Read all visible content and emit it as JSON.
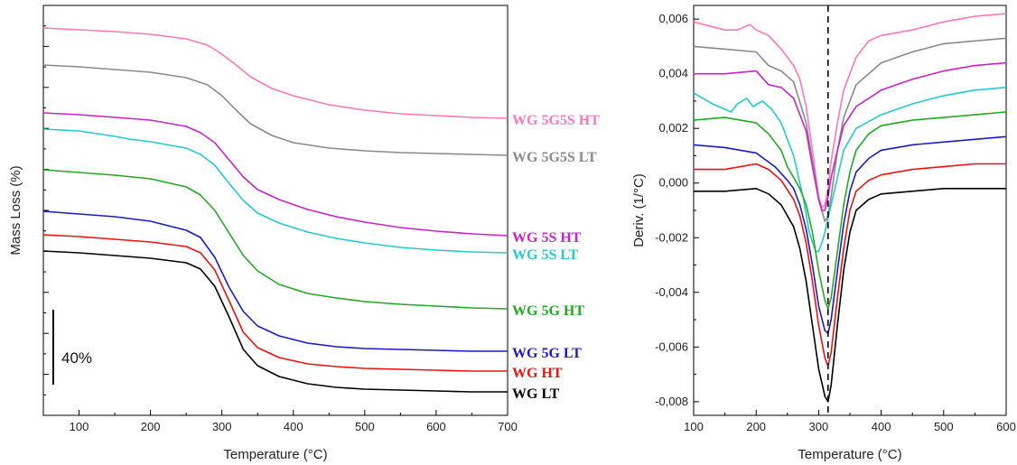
{
  "chart_data": [
    {
      "type": "line",
      "xlabel": "Temperature (°C)",
      "ylabel": "Mass Loss (%)",
      "xlim": [
        50,
        700
      ],
      "x_ticks": [
        100,
        200,
        300,
        400,
        500,
        600,
        700
      ],
      "y_tick_labels": "none",
      "y_tick_count": 20,
      "scale_bar": "40%",
      "series": [
        {
          "name": "WG 5G5S HT",
          "color": "#ff77bb",
          "x": [
            50,
            100,
            150,
            200,
            250,
            280,
            300,
            320,
            340,
            370,
            400,
            450,
            500,
            550,
            600,
            650,
            700
          ],
          "y": [
            31,
            33,
            35,
            38,
            43,
            50,
            60,
            72,
            85,
            98,
            106,
            116,
            122,
            126,
            128,
            130,
            131
          ]
        },
        {
          "name": "WG 5G5S LT",
          "color": "#8a8a8a",
          "x": [
            50,
            100,
            150,
            200,
            250,
            280,
            300,
            320,
            340,
            370,
            400,
            450,
            500,
            550,
            600,
            650,
            700
          ],
          "y": [
            72,
            74,
            77,
            80,
            86,
            94,
            106,
            122,
            137,
            150,
            158,
            164,
            167,
            169,
            170,
            171,
            172
          ]
        },
        {
          "name": "WG 5S HT",
          "color": "#cc22cc",
          "x": [
            50,
            100,
            150,
            200,
            250,
            270,
            290,
            310,
            330,
            350,
            380,
            420,
            460,
            500,
            550,
            600,
            650,
            700
          ],
          "y": [
            125,
            127,
            130,
            133,
            140,
            147,
            158,
            177,
            196,
            210,
            221,
            232,
            240,
            246,
            252,
            256,
            259,
            261
          ]
        },
        {
          "name": "WG 5S LT",
          "color": "#22cccc",
          "x": [
            50,
            100,
            150,
            170,
            200,
            250,
            270,
            290,
            310,
            330,
            350,
            380,
            420,
            460,
            500,
            550,
            600,
            650,
            700
          ],
          "y": [
            143,
            145,
            151,
            154,
            157,
            164,
            171,
            183,
            203,
            222,
            236,
            247,
            257,
            264,
            269,
            274,
            277,
            279,
            280
          ]
        },
        {
          "name": "WG 5G HT",
          "color": "#22aa22",
          "x": [
            50,
            100,
            150,
            200,
            250,
            270,
            290,
            310,
            330,
            350,
            380,
            420,
            460,
            500,
            550,
            600,
            650,
            700
          ],
          "y": [
            188,
            191,
            194,
            198,
            207,
            216,
            233,
            258,
            283,
            300,
            315,
            325,
            330,
            334,
            337,
            339,
            341,
            342
          ]
        },
        {
          "name": "WG 5G LT",
          "color": "#1a1acc",
          "x": [
            50,
            100,
            150,
            200,
            250,
            270,
            290,
            310,
            330,
            350,
            380,
            420,
            460,
            500,
            550,
            600,
            650,
            700
          ],
          "y": [
            234,
            237,
            240,
            245,
            255,
            263,
            285,
            318,
            345,
            361,
            372,
            380,
            384,
            386,
            387,
            388,
            389,
            389
          ]
        },
        {
          "name": "WG HT",
          "color": "#ee1111",
          "x": [
            50,
            100,
            150,
            200,
            250,
            270,
            290,
            310,
            330,
            350,
            380,
            420,
            460,
            500,
            550,
            600,
            650,
            700
          ],
          "y": [
            260,
            262,
            265,
            268,
            273,
            280,
            299,
            333,
            368,
            385,
            396,
            403,
            406,
            408,
            409,
            410,
            411,
            411
          ]
        },
        {
          "name": "WG LT",
          "color": "#000000",
          "x": [
            50,
            100,
            150,
            200,
            250,
            270,
            290,
            310,
            330,
            350,
            380,
            420,
            460,
            500,
            550,
            600,
            650,
            700
          ],
          "y": [
            278,
            280,
            283,
            286,
            291,
            298,
            317,
            351,
            387,
            405,
            417,
            425,
            429,
            431,
            432,
            433,
            434,
            434
          ]
        }
      ]
    },
    {
      "type": "line",
      "xlabel": "Temperature (°C)",
      "ylabel": "Deriv. (1/°C)",
      "xlim": [
        100,
        600
      ],
      "ylim": [
        -0.0085,
        0.0065
      ],
      "x_ticks": [
        100,
        200,
        300,
        400,
        500,
        600
      ],
      "y_ticks": [
        "0,006",
        "0,004",
        "0,002",
        "0,000",
        "-0,002",
        "-0,004",
        "-0,006",
        "-0,008"
      ],
      "y_tick_values": [
        0.006,
        0.004,
        0.002,
        0.0,
        -0.002,
        -0.004,
        -0.006,
        -0.008
      ],
      "reference_line_x": 315,
      "series": [
        {
          "name": "WG 5G5S HT",
          "color": "#ff77bb",
          "x": [
            100,
            150,
            170,
            190,
            200,
            220,
            240,
            260,
            270,
            280,
            290,
            300,
            305,
            310,
            315,
            320,
            330,
            340,
            360,
            380,
            400,
            450,
            500,
            550,
            600
          ],
          "y": [
            0.0059,
            0.0056,
            0.0056,
            0.0058,
            0.0056,
            0.0054,
            0.0049,
            0.0043,
            0.0038,
            0.0028,
            0.0012,
            -0.0005,
            -0.0009,
            -0.0008,
            -0.0002,
            0.0008,
            0.0022,
            0.0034,
            0.0046,
            0.0052,
            0.0054,
            0.0056,
            0.0059,
            0.0061,
            0.0062
          ]
        },
        {
          "name": "WG 5G5S LT",
          "color": "#8a8a8a",
          "x": [
            100,
            150,
            200,
            220,
            240,
            260,
            280,
            290,
            300,
            310,
            315,
            320,
            330,
            340,
            360,
            400,
            450,
            500,
            550,
            600
          ],
          "y": [
            0.005,
            0.0049,
            0.0048,
            0.0043,
            0.0041,
            0.0037,
            0.0022,
            0.0008,
            -0.0006,
            -0.0014,
            -0.0012,
            -0.0005,
            0.0012,
            0.0024,
            0.0036,
            0.0044,
            0.0048,
            0.0051,
            0.0052,
            0.0053
          ]
        },
        {
          "name": "WG 5S HT",
          "color": "#cc22cc",
          "x": [
            100,
            150,
            200,
            220,
            240,
            260,
            280,
            290,
            300,
            305,
            310,
            315,
            320,
            330,
            340,
            360,
            380,
            400,
            450,
            500,
            550,
            600
          ],
          "y": [
            0.004,
            0.004,
            0.0041,
            0.0036,
            0.0035,
            0.0031,
            0.0019,
            0.0006,
            -0.0006,
            -0.001,
            -0.001,
            -0.0005,
            0.0002,
            0.0012,
            0.0021,
            0.0028,
            0.0031,
            0.0034,
            0.0038,
            0.0041,
            0.0043,
            0.0044
          ]
        },
        {
          "name": "WG 5S LT",
          "color": "#22cccc",
          "x": [
            100,
            130,
            160,
            170,
            185,
            195,
            210,
            225,
            240,
            260,
            275,
            285,
            295,
            300,
            305,
            310,
            320,
            330,
            340,
            360,
            400,
            450,
            500,
            550,
            600
          ],
          "y": [
            0.0033,
            0.0029,
            0.0026,
            0.0029,
            0.0031,
            0.0028,
            0.003,
            0.0027,
            0.0022,
            0.001,
            -0.0005,
            -0.0018,
            -0.0025,
            -0.0025,
            -0.0022,
            -0.0018,
            -0.0008,
            0.0002,
            0.0012,
            0.002,
            0.0025,
            0.0029,
            0.0032,
            0.0034,
            0.0035
          ]
        },
        {
          "name": "WG 5G HT",
          "color": "#22aa22",
          "x": [
            100,
            150,
            200,
            220,
            240,
            250,
            260,
            270,
            280,
            290,
            300,
            310,
            315,
            320,
            330,
            340,
            350,
            360,
            380,
            400,
            450,
            500,
            550,
            600
          ],
          "y": [
            0.0023,
            0.0024,
            0.0022,
            0.0018,
            0.0012,
            0.0006,
            0.0002,
            -0.0002,
            -0.0008,
            -0.0018,
            -0.0032,
            -0.0043,
            -0.0046,
            -0.0042,
            -0.0025,
            -0.0008,
            0.0004,
            0.0012,
            0.0018,
            0.0021,
            0.0023,
            0.0024,
            0.0025,
            0.0026
          ]
        },
        {
          "name": "WG 5G LT",
          "color": "#1a1acc",
          "x": [
            100,
            150,
            200,
            230,
            250,
            260,
            270,
            280,
            290,
            300,
            310,
            315,
            320,
            330,
            340,
            350,
            360,
            380,
            400,
            450,
            500,
            550,
            600
          ],
          "y": [
            0.0014,
            0.0013,
            0.0011,
            0.0006,
            0.0001,
            -0.0002,
            -0.0008,
            -0.0017,
            -0.003,
            -0.0045,
            -0.0054,
            -0.0055,
            -0.005,
            -0.0032,
            -0.0015,
            -0.0003,
            0.0004,
            0.0009,
            0.0012,
            0.0014,
            0.0015,
            0.0016,
            0.0017
          ]
        },
        {
          "name": "WG HT",
          "color": "#ee1111",
          "x": [
            100,
            150,
            200,
            220,
            240,
            260,
            270,
            280,
            290,
            300,
            310,
            315,
            320,
            330,
            340,
            350,
            360,
            380,
            400,
            450,
            500,
            550,
            600
          ],
          "y": [
            0.0005,
            0.0005,
            0.0007,
            0.0005,
            0.0001,
            -0.0006,
            -0.0012,
            -0.0022,
            -0.0036,
            -0.0052,
            -0.0064,
            -0.0067,
            -0.0062,
            -0.0042,
            -0.0024,
            -0.001,
            -0.0003,
            0.0001,
            0.0003,
            0.0005,
            0.0006,
            0.0007,
            0.0007
          ]
        },
        {
          "name": "WG LT",
          "color": "#000000",
          "x": [
            100,
            150,
            200,
            220,
            240,
            260,
            270,
            280,
            290,
            300,
            310,
            315,
            320,
            330,
            340,
            350,
            360,
            380,
            400,
            450,
            500,
            550,
            600
          ],
          "y": [
            -0.0003,
            -0.0003,
            -0.0002,
            -0.0004,
            -0.0008,
            -0.0016,
            -0.0024,
            -0.0036,
            -0.0052,
            -0.0068,
            -0.0078,
            -0.008,
            -0.0074,
            -0.0052,
            -0.0032,
            -0.0018,
            -0.001,
            -0.0006,
            -0.0004,
            -0.0003,
            -0.0002,
            -0.0002,
            -0.0002
          ]
        }
      ]
    }
  ]
}
